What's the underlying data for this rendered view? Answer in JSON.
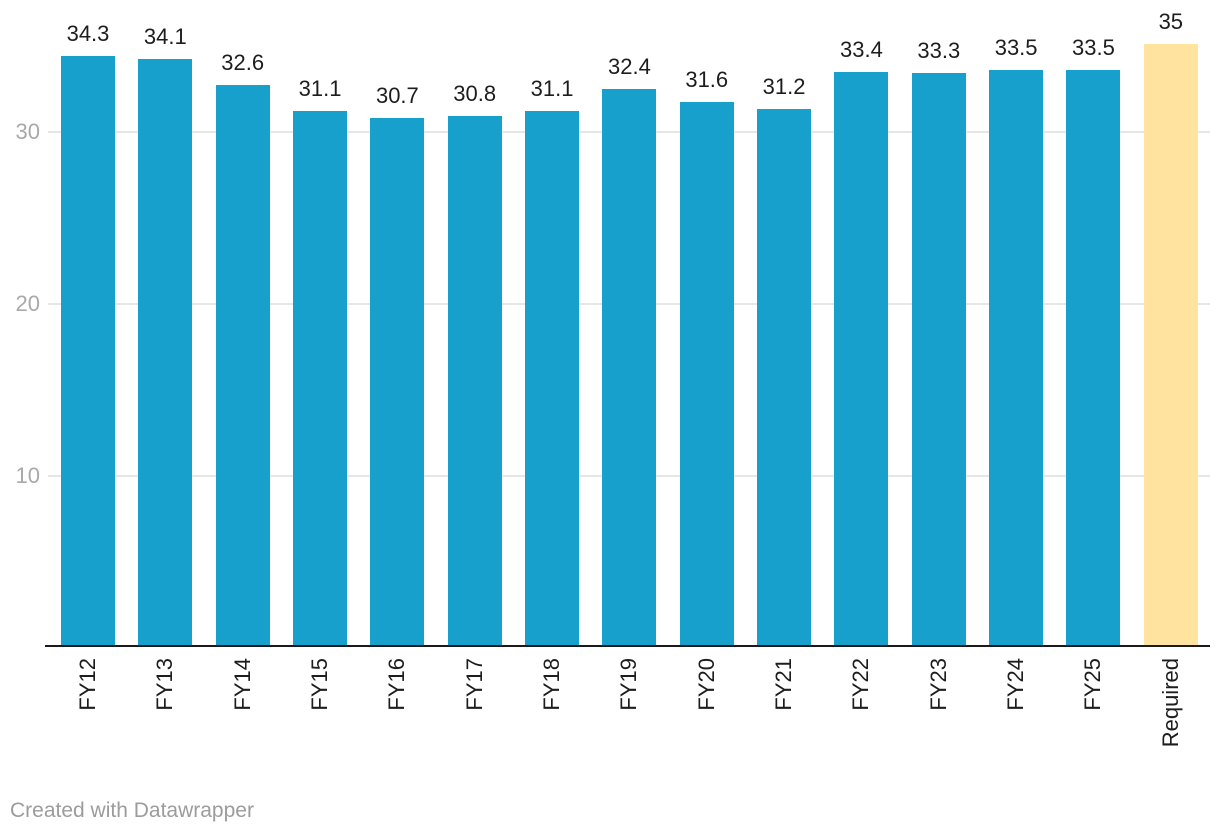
{
  "chart_data": {
    "type": "bar",
    "title": "",
    "xlabel": "",
    "ylabel": "",
    "categories": [
      "FY12",
      "FY13",
      "FY14",
      "FY15",
      "FY16",
      "FY17",
      "FY18",
      "FY19",
      "FY20",
      "FY21",
      "FY22",
      "FY23",
      "FY24",
      "FY25",
      "Required"
    ],
    "values": [
      34.3,
      34.1,
      32.6,
      31.1,
      30.7,
      30.8,
      31.1,
      32.4,
      31.6,
      31.2,
      33.4,
      33.3,
      33.5,
      33.5,
      35
    ],
    "value_labels": [
      "34.3",
      "34.1",
      "32.6",
      "31.1",
      "30.7",
      "30.8",
      "31.1",
      "32.4",
      "31.6",
      "31.2",
      "33.4",
      "33.3",
      "33.5",
      "33.5",
      "35"
    ],
    "highlight_category": "Required",
    "y_ticks": [
      10,
      20,
      30
    ],
    "ylim": [
      0,
      37.6
    ],
    "grid": "horizontal",
    "legend": "none",
    "value_labels_shown": true,
    "x_label_rotation_degrees": -90
  },
  "colors": {
    "bar": "#18a0cc",
    "highlight": "#ffe39e",
    "gridline": "#e7e7e7",
    "axis_line": "#1a1a1a",
    "tick_label": "#a9a9a9",
    "value_label": "#1d1d1d",
    "x_label": "#1d1d1d",
    "footer": "#9c9c9c",
    "background": "#ffffff"
  },
  "footer": {
    "credit": "Created with Datawrapper"
  }
}
